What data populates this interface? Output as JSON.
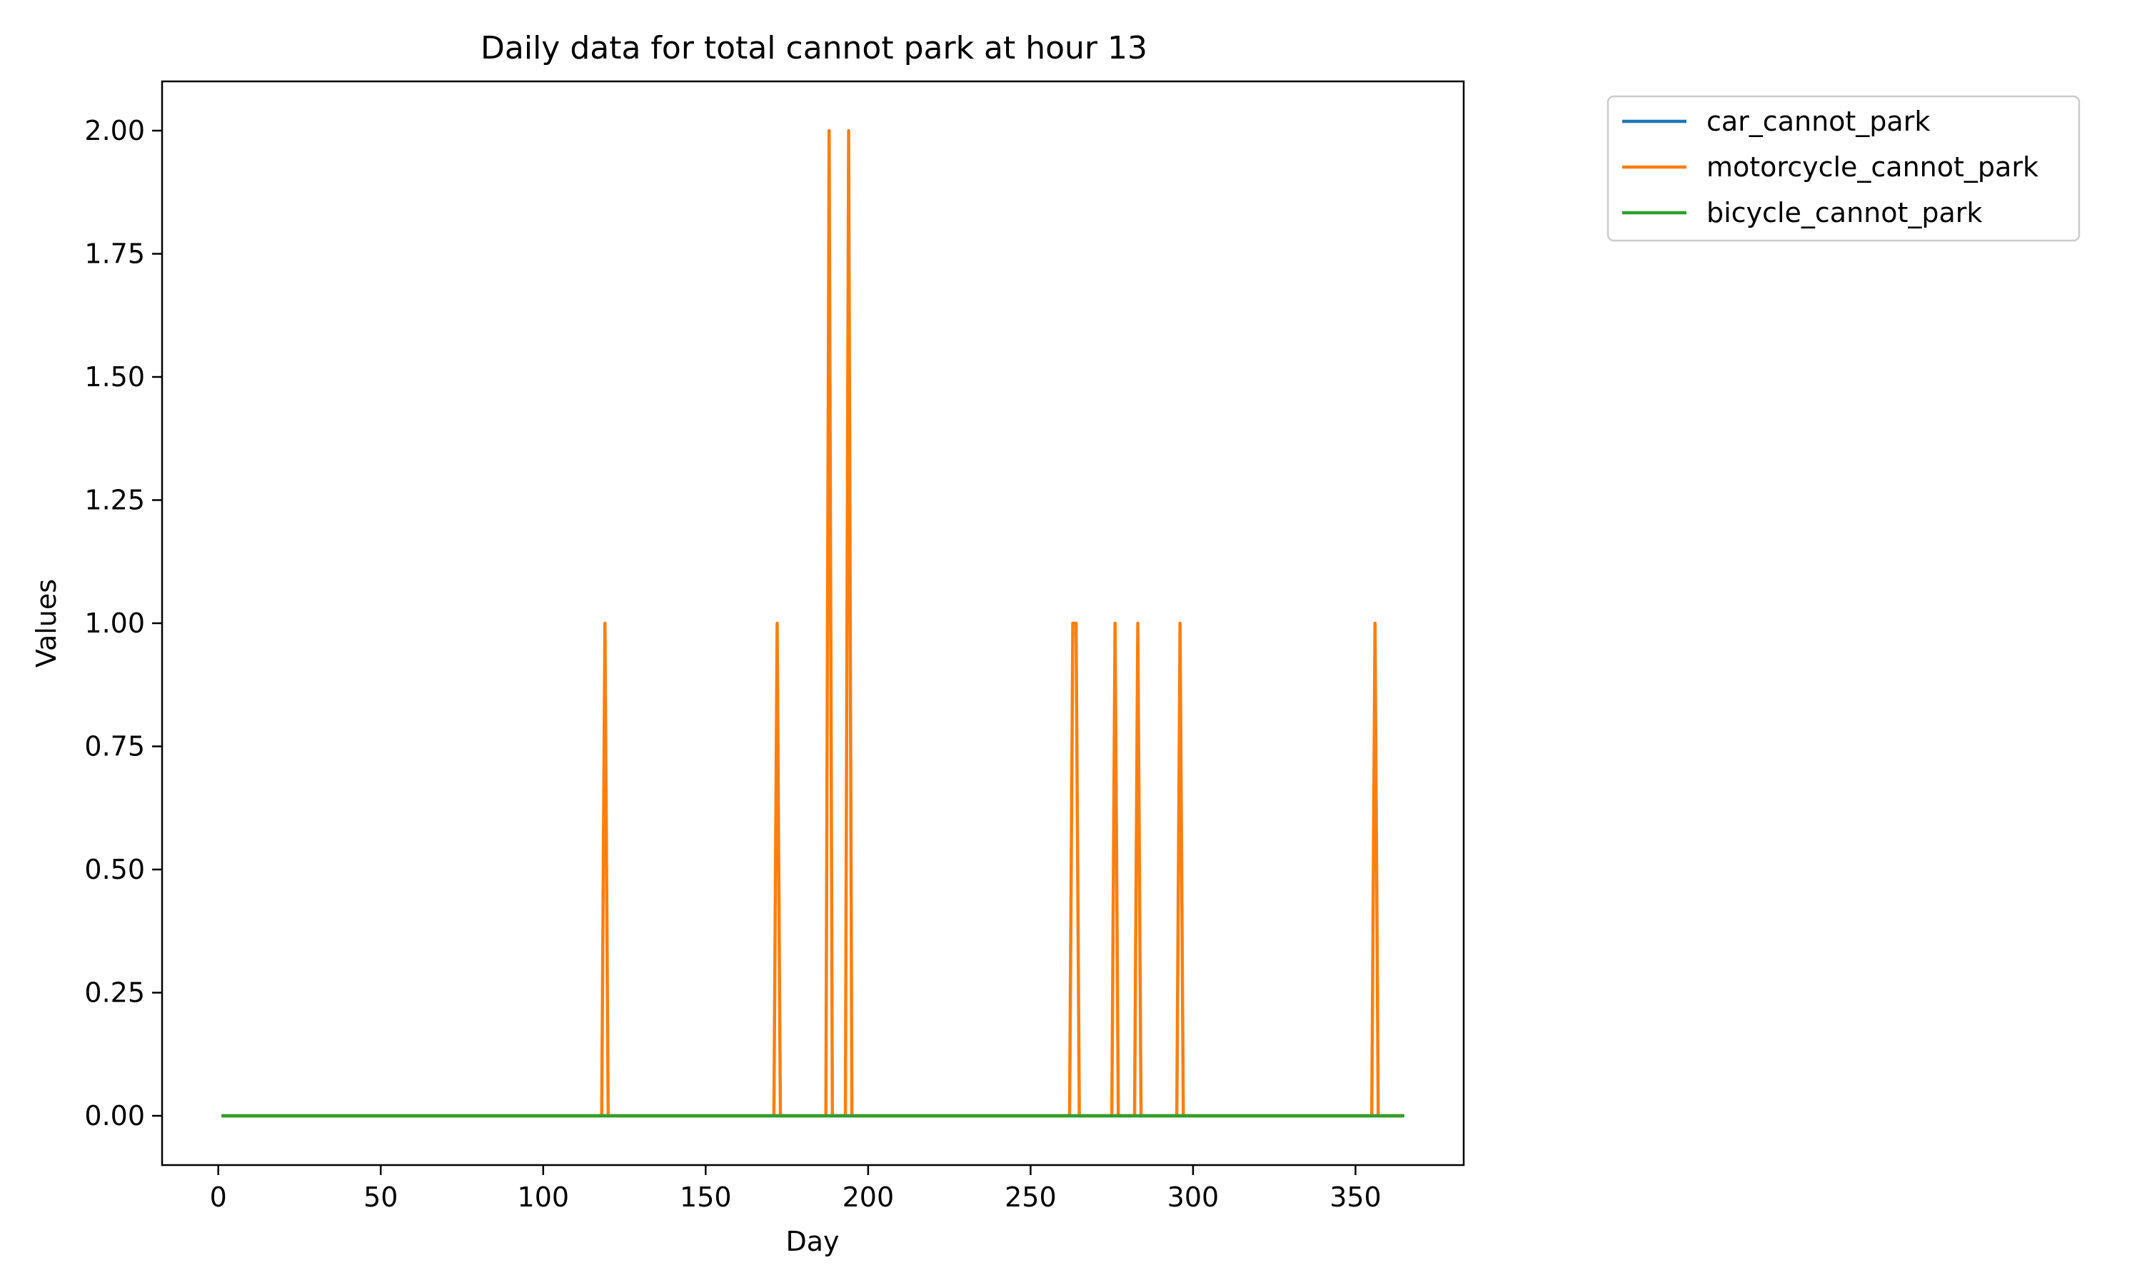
{
  "chart_data": {
    "type": "line",
    "title": "Daily data for total cannot park at hour 13",
    "xlabel": "Day",
    "ylabel": "Values",
    "xlim": [
      -17.3,
      383.3
    ],
    "ylim": [
      -0.1,
      2.1
    ],
    "x_ticks": [
      0,
      50,
      100,
      150,
      200,
      250,
      300,
      350
    ],
    "y_ticks": [
      0.0,
      0.25,
      0.5,
      0.75,
      1.0,
      1.25,
      1.5,
      1.75,
      2.0
    ],
    "x_tick_labels": [
      "0",
      "50",
      "100",
      "150",
      "200",
      "250",
      "300",
      "350"
    ],
    "y_tick_labels": [
      "0.00",
      "0.25",
      "0.50",
      "0.75",
      "1.00",
      "1.25",
      "1.50",
      "1.75",
      "2.00"
    ],
    "grid": false,
    "legend_position": "outside-top-right",
    "x_range": [
      1,
      365
    ],
    "series": [
      {
        "name": "car_cannot_park",
        "color": "#1f77b4",
        "baseline": 0,
        "nonzero": []
      },
      {
        "name": "motorcycle_cannot_park",
        "color": "#ff7f0e",
        "baseline": 0,
        "nonzero": [
          {
            "x": 119,
            "y": 1
          },
          {
            "x": 172,
            "y": 1
          },
          {
            "x": 188,
            "y": 2
          },
          {
            "x": 194,
            "y": 2
          },
          {
            "x": 263,
            "y": 1
          },
          {
            "x": 264,
            "y": 1
          },
          {
            "x": 276,
            "y": 1
          },
          {
            "x": 283,
            "y": 1
          },
          {
            "x": 296,
            "y": 1
          },
          {
            "x": 356,
            "y": 1
          }
        ]
      },
      {
        "name": "bicycle_cannot_park",
        "color": "#2ca02c",
        "baseline": 0,
        "nonzero": []
      }
    ]
  }
}
